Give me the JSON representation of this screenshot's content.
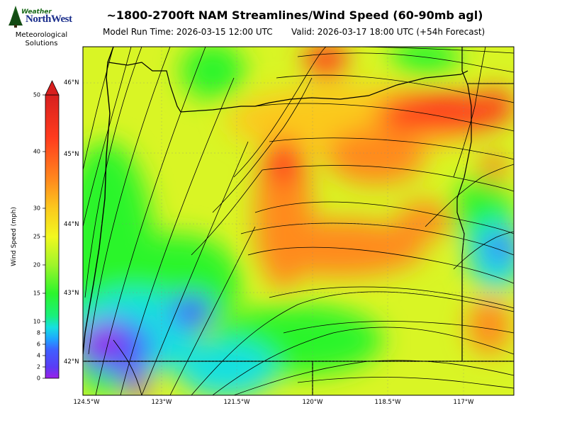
{
  "logo": {
    "word1": "Weather",
    "word2": "NorthWest",
    "sub1": "Meteorological",
    "sub2": "Solutions"
  },
  "header": {
    "title": "~1800-2700ft NAM Streamlines/Wind Speed (60-90mb agl)",
    "model_run": "Model Run Time: 2026-03-15 12:00 UTC",
    "valid": "Valid: 2026-03-17 18:00 UTC  (+54h Forecast)"
  },
  "colorbar": {
    "label": "Wind Speed (mph)",
    "unit": "mph",
    "ticks": [
      0,
      2,
      4,
      6,
      8,
      10,
      15,
      20,
      25,
      30,
      40,
      50
    ],
    "range": [
      0,
      50
    ],
    "extend": "max",
    "colors": [
      "#9b1fe8",
      "#3f5fff",
      "#1ea7ff",
      "#16e0e0",
      "#19f07c",
      "#2cf52c",
      "#9ff52a",
      "#f2f81f",
      "#fbc91e",
      "#ff8a1e",
      "#ff3b1e",
      "#d71f1f"
    ]
  },
  "map": {
    "lat_labels": [
      "46°N",
      "45°N",
      "44°N",
      "43°N",
      "42°N"
    ],
    "lon_labels": [
      "124.5°W",
      "123°W",
      "121.5°W",
      "120°W",
      "118.5°W",
      "117°W"
    ]
  }
}
